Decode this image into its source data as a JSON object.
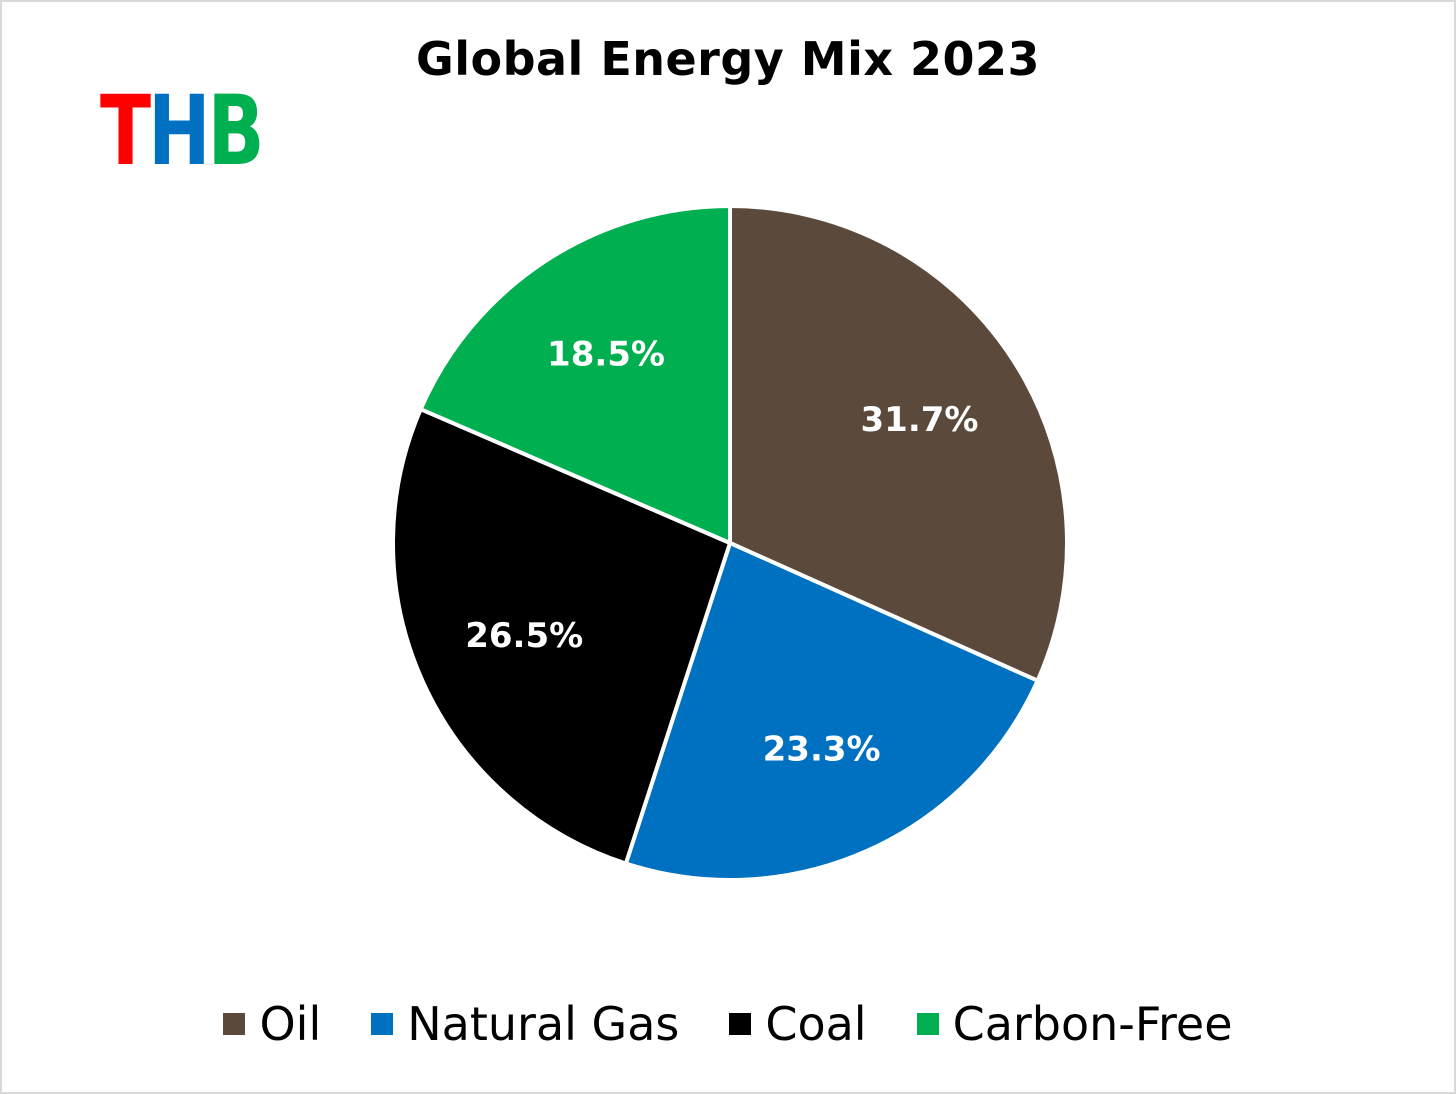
{
  "logo": {
    "letters": [
      "T",
      "H",
      "B"
    ],
    "colors": [
      "#ff0000",
      "#0070c0",
      "#00b050"
    ]
  },
  "chart_data": {
    "type": "pie",
    "title": "Global Energy Mix 2023",
    "categories": [
      "Oil",
      "Natural Gas",
      "Coal",
      "Carbon-Free"
    ],
    "values": [
      31.7,
      23.3,
      26.5,
      18.5
    ],
    "labels": [
      "31.7%",
      "23.3%",
      "26.5%",
      "18.5%"
    ],
    "colors": [
      "#5b4a3c",
      "#0070c0",
      "#000000",
      "#00b050"
    ],
    "start_angle": "12 o'clock",
    "direction": "clockwise",
    "legend_position": "bottom"
  }
}
